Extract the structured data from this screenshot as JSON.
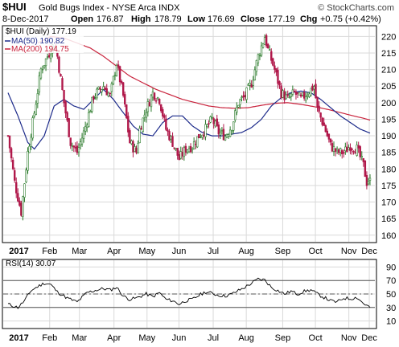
{
  "header": {
    "symbol": "$HUI",
    "name": "Gold Bugs Index - NYSE Arca INDX",
    "watermark": "© StockCharts.com",
    "date": "8-Dec-2017",
    "open_label": "Open",
    "open": "176.87",
    "high_label": "High",
    "high": "178.79",
    "low_label": "Low",
    "low": "176.69",
    "close_label": "Close",
    "close": "177.19",
    "chg_label": "Chg",
    "chg": "+0.75 (+0.42%)"
  },
  "legend": {
    "price": "$HUI (Daily) 177.19",
    "ma50": "MA(50) 190.82",
    "ma200": "MA(200) 194.75"
  },
  "rsi_label": "RSI(14) 30.07",
  "colors": {
    "up": "#2a7a2a",
    "down": "#b0184a",
    "ma50": "#1c2a8a",
    "ma200": "#c8203a",
    "grid": "#d9d9d9",
    "rsi_line": "#000000"
  },
  "chart_data": [
    {
      "type": "candlestick",
      "x_axis_labels": [
        "2017",
        "Feb",
        "Mar",
        "Apr",
        "May",
        "Jun",
        "Jul",
        "Aug",
        "Sep",
        "Oct",
        "Nov",
        "Dec"
      ],
      "y_ticks": [
        160,
        165,
        170,
        175,
        180,
        185,
        190,
        195,
        200,
        205,
        210,
        215,
        220
      ],
      "ylim": [
        158,
        223
      ],
      "close_path": [
        [
          0,
          190
        ],
        [
          4,
          176
        ],
        [
          8,
          167
        ],
        [
          12,
          185
        ],
        [
          16,
          197
        ],
        [
          20,
          210
        ],
        [
          24,
          214
        ],
        [
          28,
          218
        ],
        [
          30,
          214
        ],
        [
          34,
          200
        ],
        [
          38,
          188
        ],
        [
          42,
          185
        ],
        [
          46,
          191
        ],
        [
          52,
          202
        ],
        [
          58,
          205
        ],
        [
          62,
          202
        ],
        [
          66,
          212
        ],
        [
          70,
          202
        ],
        [
          74,
          188
        ],
        [
          78,
          185
        ],
        [
          80,
          192
        ],
        [
          84,
          198
        ],
        [
          88,
          203
        ],
        [
          92,
          201
        ],
        [
          96,
          192
        ],
        [
          100,
          188
        ],
        [
          104,
          183
        ],
        [
          108,
          186
        ],
        [
          112,
          187
        ],
        [
          116,
          190
        ],
        [
          120,
          192
        ],
        [
          124,
          195
        ],
        [
          128,
          191
        ],
        [
          132,
          190
        ],
        [
          136,
          193
        ],
        [
          140,
          200
        ],
        [
          144,
          202
        ],
        [
          148,
          206
        ],
        [
          152,
          214
        ],
        [
          156,
          220
        ],
        [
          158,
          216
        ],
        [
          162,
          210
        ],
        [
          166,
          203
        ],
        [
          170,
          201
        ],
        [
          174,
          203
        ],
        [
          178,
          201
        ],
        [
          182,
          203
        ],
        [
          186,
          205
        ],
        [
          188,
          198
        ],
        [
          192,
          193
        ],
        [
          196,
          187
        ],
        [
          200,
          185
        ],
        [
          204,
          185
        ],
        [
          208,
          187
        ],
        [
          212,
          186
        ],
        [
          216,
          181
        ],
        [
          218,
          176
        ],
        [
          220,
          177.19
        ]
      ],
      "ma50": [
        [
          0,
          203
        ],
        [
          6,
          196
        ],
        [
          12,
          188
        ],
        [
          16,
          186
        ],
        [
          22,
          190
        ],
        [
          28,
          199
        ],
        [
          34,
          201
        ],
        [
          40,
          199
        ],
        [
          46,
          198
        ],
        [
          52,
          201
        ],
        [
          58,
          204
        ],
        [
          64,
          201
        ],
        [
          70,
          197
        ],
        [
          76,
          193
        ],
        [
          82,
          190.5
        ],
        [
          88,
          190
        ],
        [
          94,
          194
        ],
        [
          100,
          196
        ],
        [
          106,
          196
        ],
        [
          112,
          193
        ],
        [
          118,
          191
        ],
        [
          124,
          190
        ],
        [
          130,
          190
        ],
        [
          136,
          190.5
        ],
        [
          142,
          191
        ],
        [
          148,
          192.5
        ],
        [
          154,
          195
        ],
        [
          160,
          199
        ],
        [
          166,
          201.5
        ],
        [
          172,
          203
        ],
        [
          178,
          203.5
        ],
        [
          184,
          203
        ],
        [
          190,
          201
        ],
        [
          196,
          198.5
        ],
        [
          202,
          196
        ],
        [
          208,
          194
        ],
        [
          214,
          192
        ],
        [
          220,
          190.82
        ]
      ],
      "ma200": [
        [
          18,
          218
        ],
        [
          26,
          220
        ],
        [
          34,
          219.5
        ],
        [
          42,
          218
        ],
        [
          50,
          216.5
        ],
        [
          58,
          214
        ],
        [
          66,
          211
        ],
        [
          74,
          208
        ],
        [
          82,
          206
        ],
        [
          90,
          204
        ],
        [
          98,
          202.5
        ],
        [
          106,
          201
        ],
        [
          114,
          200
        ],
        [
          122,
          199
        ],
        [
          130,
          198.5
        ],
        [
          138,
          198.3
        ],
        [
          146,
          198.5
        ],
        [
          154,
          199.2
        ],
        [
          162,
          199.8
        ],
        [
          170,
          200
        ],
        [
          178,
          199.5
        ],
        [
          186,
          198.8
        ],
        [
          194,
          198
        ],
        [
          202,
          197
        ],
        [
          210,
          196
        ],
        [
          216,
          195.3
        ],
        [
          220,
          194.75
        ]
      ],
      "last_close": 177.19
    },
    {
      "type": "line",
      "name": "RSI(14)",
      "y_ticks": [
        10,
        30,
        50,
        70,
        90
      ],
      "ylim": [
        0,
        100
      ],
      "reference_lines": [
        30,
        50,
        70
      ],
      "values": [
        [
          0,
          35
        ],
        [
          6,
          30
        ],
        [
          10,
          40
        ],
        [
          14,
          55
        ],
        [
          18,
          61
        ],
        [
          22,
          66
        ],
        [
          26,
          64
        ],
        [
          30,
          53
        ],
        [
          36,
          44
        ],
        [
          42,
          38
        ],
        [
          48,
          52
        ],
        [
          54,
          56
        ],
        [
          58,
          58
        ],
        [
          62,
          56
        ],
        [
          66,
          60
        ],
        [
          70,
          47
        ],
        [
          74,
          42
        ],
        [
          78,
          44
        ],
        [
          84,
          50
        ],
        [
          88,
          46
        ],
        [
          92,
          52
        ],
        [
          96,
          42
        ],
        [
          100,
          40
        ],
        [
          104,
          35
        ],
        [
          108,
          40
        ],
        [
          112,
          42
        ],
        [
          116,
          48
        ],
        [
          120,
          53
        ],
        [
          124,
          51
        ],
        [
          128,
          48
        ],
        [
          132,
          47
        ],
        [
          136,
          50
        ],
        [
          140,
          55
        ],
        [
          144,
          60
        ],
        [
          148,
          66
        ],
        [
          152,
          72
        ],
        [
          156,
          71
        ],
        [
          160,
          60
        ],
        [
          164,
          55
        ],
        [
          168,
          50
        ],
        [
          172,
          54
        ],
        [
          176,
          50
        ],
        [
          180,
          54
        ],
        [
          184,
          56
        ],
        [
          188,
          50
        ],
        [
          192,
          45
        ],
        [
          196,
          40
        ],
        [
          200,
          38
        ],
        [
          204,
          44
        ],
        [
          208,
          43
        ],
        [
          212,
          45
        ],
        [
          216,
          36
        ],
        [
          220,
          30.07
        ]
      ]
    }
  ]
}
